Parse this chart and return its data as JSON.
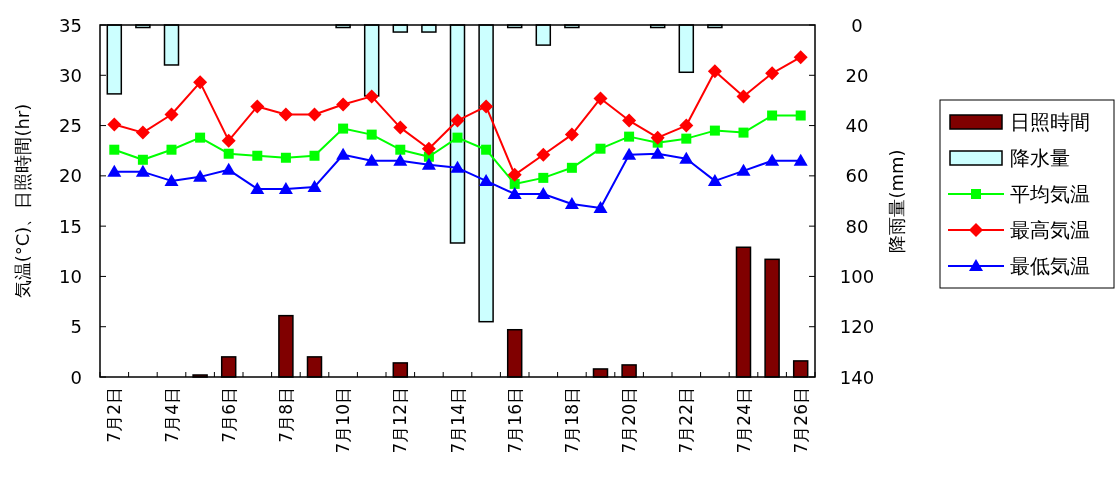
{
  "chart_data": {
    "type": "bar",
    "xlabel": null,
    "ylabel": "気温(°C)、日照時間(hr)",
    "y2label": "降雨量(mm)",
    "categories": [
      "7月2日",
      null,
      "7月4日",
      null,
      "7月6日",
      null,
      "7月8日",
      null,
      "7月10日",
      null,
      "7月12日",
      null,
      "7月14日",
      null,
      "7月16日",
      null,
      "7月18日",
      null,
      "7月20日",
      null,
      "7月22日",
      null,
      "7月24日",
      null,
      "7月26日"
    ],
    "ylim": [
      0,
      35
    ],
    "yticks": [
      0,
      5,
      10,
      15,
      20,
      25,
      30,
      35
    ],
    "y2lim": [
      140,
      0
    ],
    "y2ticks": [
      0,
      20,
      40,
      60,
      80,
      100,
      120,
      140
    ],
    "legend": "right",
    "grid": false,
    "series": [
      {
        "name": "日照時間",
        "color": "#800000",
        "values": [
          null,
          null,
          null,
          0.2,
          2.0,
          null,
          6.1,
          2.0,
          null,
          null,
          1.4,
          null,
          null,
          null,
          4.7,
          null,
          null,
          0.8,
          1.2,
          null,
          null,
          null,
          12.9,
          11.7,
          1.6
        ]
      },
      {
        "name": "降水量",
        "axis": "y2",
        "color": "#ccffff",
        "values": [
          27.4,
          1.0,
          15.9,
          null,
          null,
          null,
          null,
          null,
          1.0,
          28.2,
          2.8,
          2.8,
          86.7,
          118,
          1.0,
          8.0,
          1.0,
          null,
          null,
          1.0,
          18.8,
          1.0,
          null,
          null,
          null
        ]
      },
      {
        "name": "平均気温",
        "type": "line",
        "color": "#00ff00",
        "marker": "square",
        "values": [
          22.6,
          21.6,
          22.6,
          23.8,
          22.2,
          22.0,
          21.8,
          22.0,
          24.7,
          24.1,
          22.6,
          21.9,
          23.8,
          22.6,
          19.2,
          19.8,
          20.8,
          22.7,
          23.9,
          23.3,
          23.7,
          24.5,
          24.3,
          26.0,
          26.0
        ]
      },
      {
        "name": "最高気温",
        "type": "line",
        "color": "#ff0000",
        "marker": "diamond",
        "values": [
          25.1,
          24.3,
          26.1,
          29.3,
          23.5,
          26.9,
          26.1,
          26.1,
          27.1,
          27.9,
          24.8,
          22.7,
          25.5,
          26.9,
          20.1,
          22.1,
          24.1,
          27.7,
          25.5,
          23.8,
          25.0,
          30.4,
          27.9,
          30.2,
          31.8
        ]
      },
      {
        "name": "最低気温",
        "type": "line",
        "color": "#0000ff",
        "marker": "triangle",
        "values": [
          20.4,
          20.4,
          19.5,
          19.9,
          20.6,
          18.7,
          18.7,
          18.9,
          22.1,
          21.5,
          21.5,
          21.1,
          20.8,
          19.5,
          18.2,
          18.2,
          17.2,
          16.8,
          22.1,
          22.2,
          21.7,
          19.5,
          20.5,
          21.5,
          21.5
        ]
      }
    ]
  }
}
